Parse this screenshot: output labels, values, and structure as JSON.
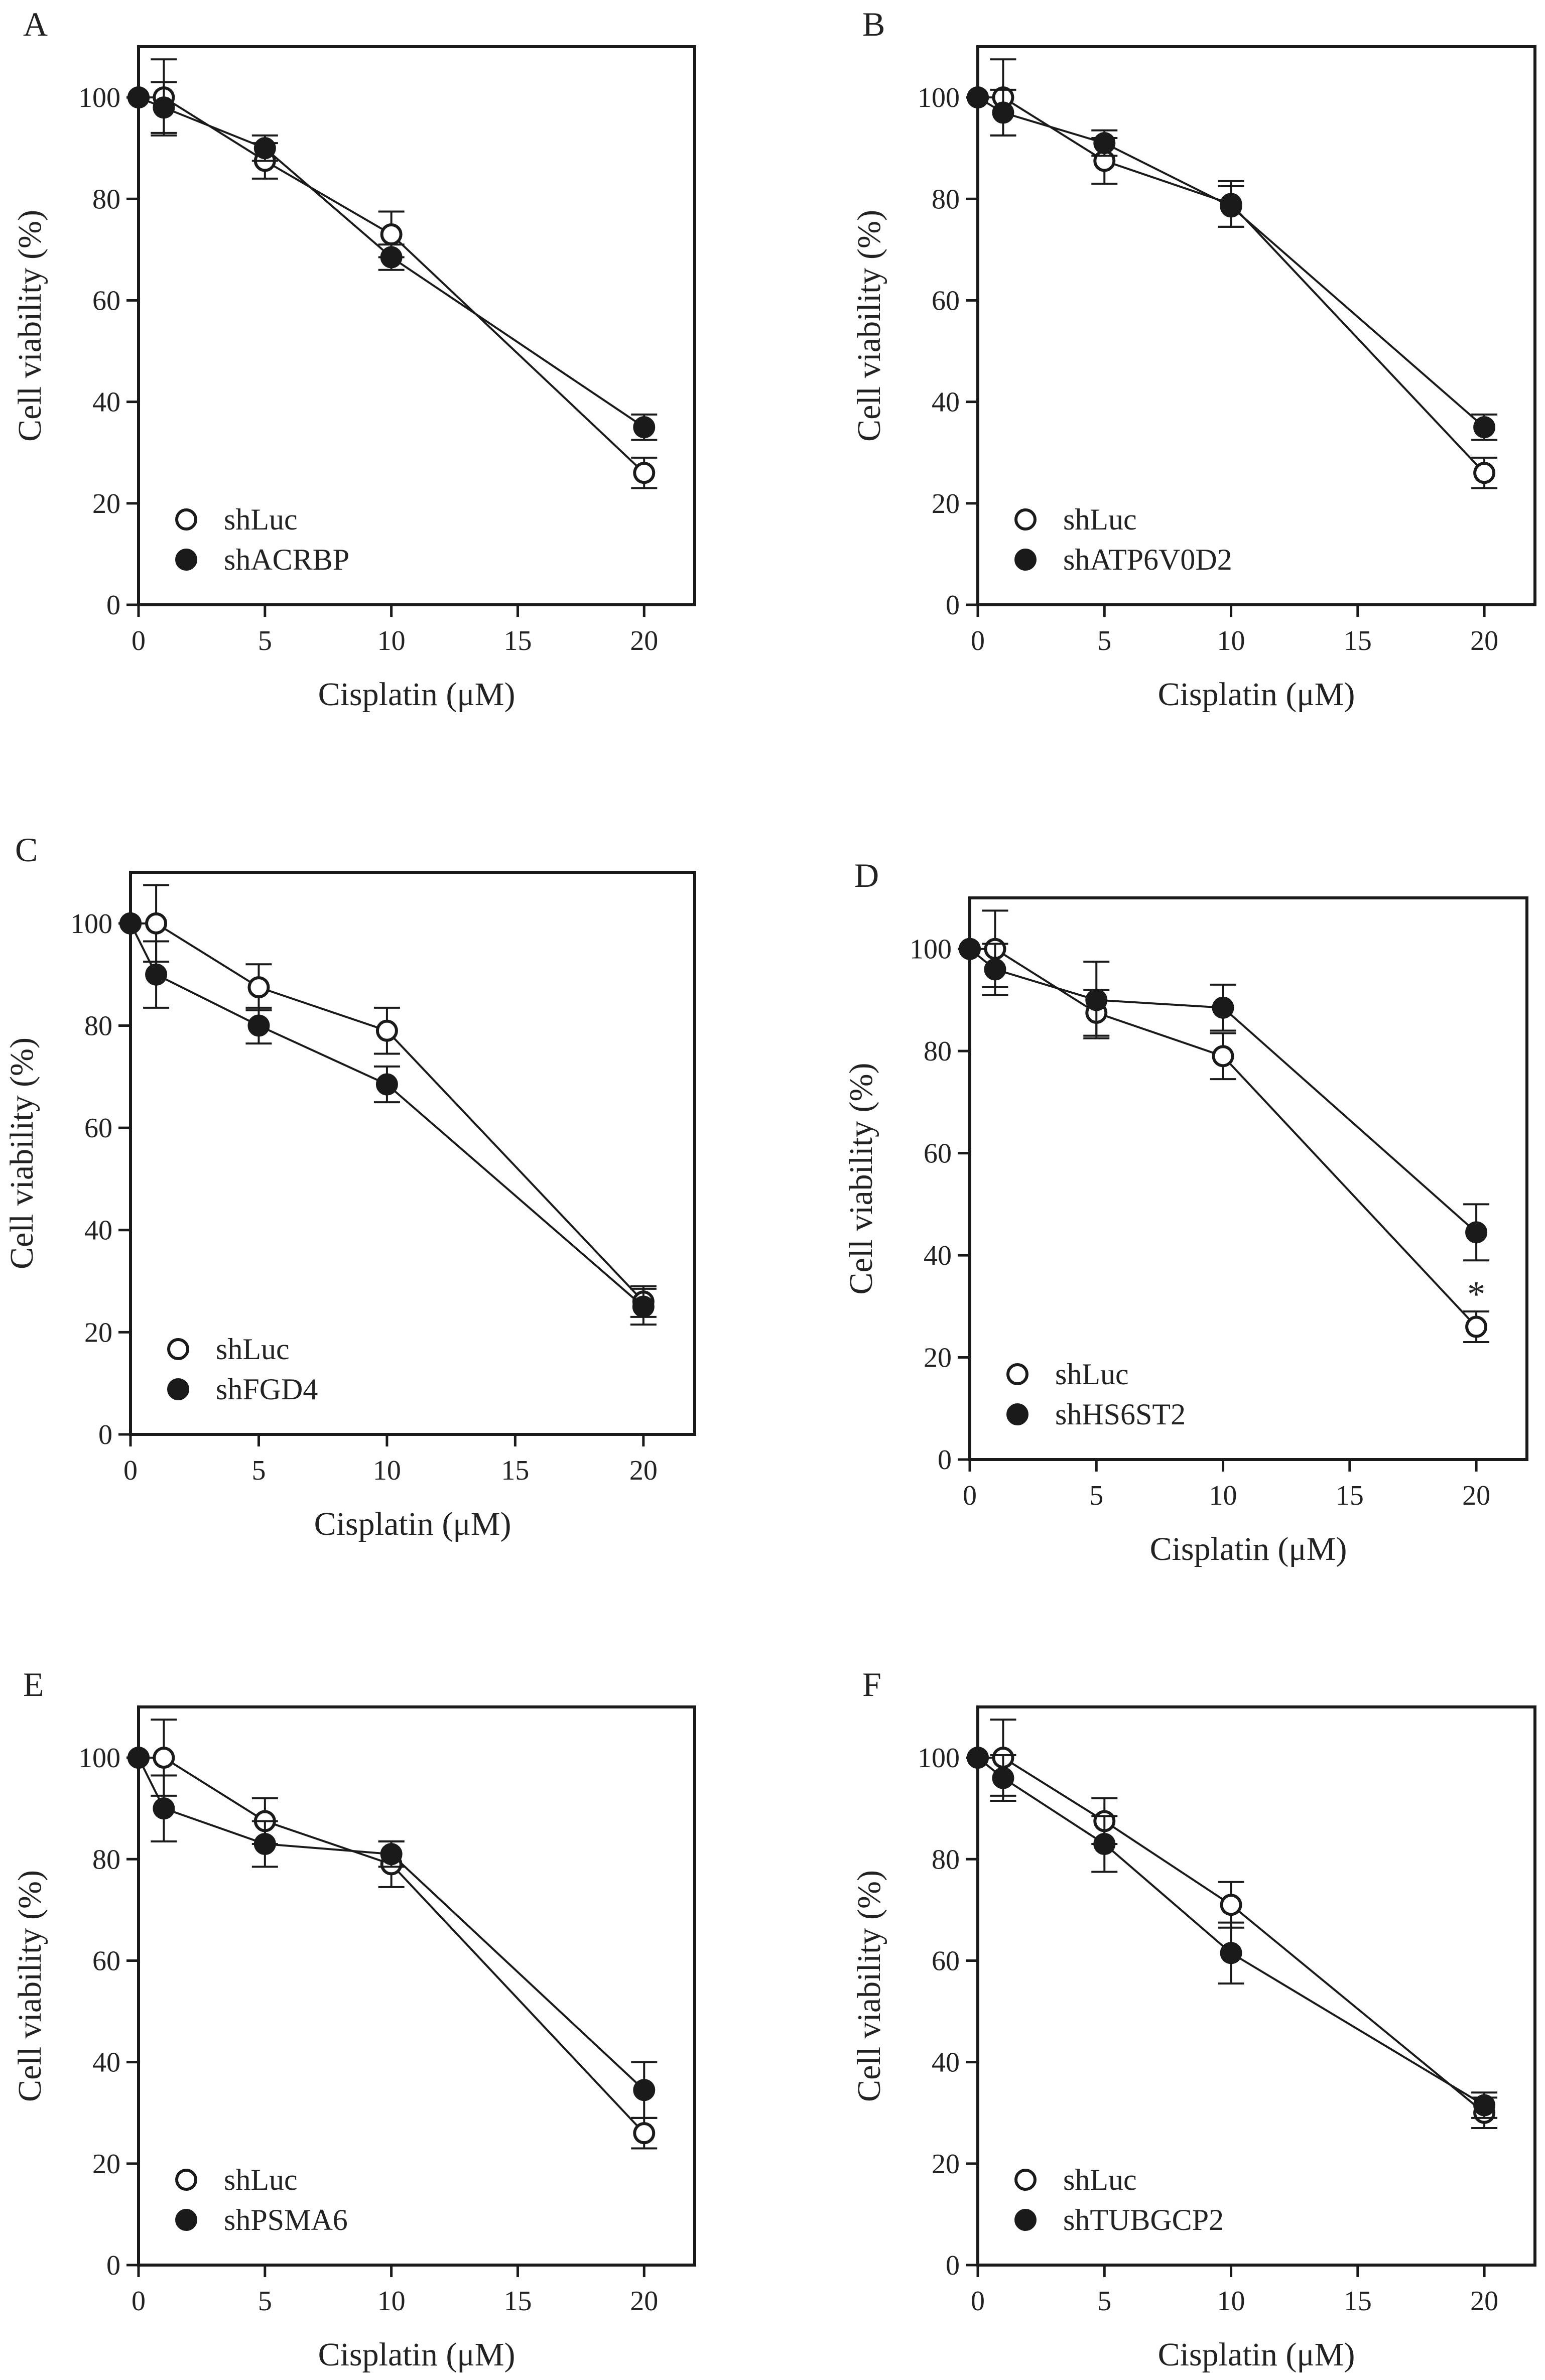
{
  "figure": {
    "background": "#ffffff",
    "ink": "#1a1a1a"
  },
  "chart_data": [
    {
      "panel": "A",
      "type": "line",
      "xlabel": "Cisplatin (μM)",
      "ylabel": "Cell viability (%)",
      "xlim": [
        0,
        22
      ],
      "ylim": [
        0,
        110
      ],
      "xticks": [
        0,
        5,
        10,
        15,
        20
      ],
      "yticks": [
        0,
        20,
        40,
        60,
        80,
        100
      ],
      "grid": false,
      "legend_position": "bottom-left",
      "series": [
        {
          "name": "shLuc",
          "marker": "open-circle",
          "x": [
            0,
            1,
            5,
            10,
            20
          ],
          "y": [
            100,
            100,
            87.5,
            73,
            26
          ],
          "err": [
            0,
            7.5,
            3.5,
            4.5,
            3
          ]
        },
        {
          "name": "shACRBP",
          "marker": "filled-circle",
          "x": [
            0,
            1,
            5,
            10,
            20
          ],
          "y": [
            100,
            98,
            90,
            68.5,
            35
          ],
          "err": [
            0,
            5,
            2.5,
            2.5,
            2.5
          ]
        }
      ]
    },
    {
      "panel": "B",
      "type": "line",
      "xlabel": "Cisplatin (μM)",
      "ylabel": "Cell viability (%)",
      "xlim": [
        0,
        22
      ],
      "ylim": [
        0,
        110
      ],
      "xticks": [
        0,
        5,
        10,
        15,
        20
      ],
      "yticks": [
        0,
        20,
        40,
        60,
        80,
        100
      ],
      "grid": false,
      "legend_position": "bottom-left",
      "series": [
        {
          "name": "shLuc",
          "marker": "open-circle",
          "x": [
            0,
            1,
            5,
            10,
            20
          ],
          "y": [
            100,
            100,
            87.5,
            79,
            26
          ],
          "err": [
            0,
            7.5,
            4.5,
            4.5,
            3
          ]
        },
        {
          "name": "shATP6V0D2",
          "marker": "filled-circle",
          "x": [
            0,
            1,
            5,
            10,
            20
          ],
          "y": [
            100,
            97,
            91,
            78.5,
            35
          ],
          "err": [
            0,
            4.5,
            2.5,
            4,
            2.5
          ]
        }
      ]
    },
    {
      "panel": "C",
      "type": "line",
      "xlabel": "Cisplatin (μM)",
      "ylabel": "Cell viability (%)",
      "xlim": [
        0,
        22
      ],
      "ylim": [
        0,
        110
      ],
      "xticks": [
        0,
        5,
        10,
        15,
        20
      ],
      "yticks": [
        0,
        20,
        40,
        60,
        80,
        100
      ],
      "grid": false,
      "legend_position": "bottom-left",
      "series": [
        {
          "name": "shLuc",
          "marker": "open-circle",
          "x": [
            0,
            1,
            5,
            10,
            20
          ],
          "y": [
            100,
            100,
            87.5,
            79,
            26
          ],
          "err": [
            0,
            7.5,
            4.5,
            4.5,
            3
          ]
        },
        {
          "name": "shFGD4",
          "marker": "filled-circle",
          "x": [
            0,
            1,
            5,
            10,
            20
          ],
          "y": [
            100,
            90,
            80,
            68.5,
            25
          ],
          "err": [
            0,
            6.5,
            3.5,
            3.5,
            3.5
          ]
        }
      ]
    },
    {
      "panel": "D",
      "type": "line",
      "xlabel": "Cisplatin (μM)",
      "ylabel": "Cell viability (%)",
      "xlim": [
        0,
        22
      ],
      "ylim": [
        0,
        110
      ],
      "xticks": [
        0,
        5,
        10,
        15,
        20
      ],
      "yticks": [
        0,
        20,
        40,
        60,
        80,
        100
      ],
      "grid": false,
      "legend_position": "bottom-left",
      "annotations": [
        {
          "text": "*",
          "x": 20,
          "y": 33
        }
      ],
      "series": [
        {
          "name": "shLuc",
          "marker": "open-circle",
          "x": [
            0,
            1,
            5,
            10,
            20
          ],
          "y": [
            100,
            100,
            87.5,
            79,
            26
          ],
          "err": [
            0,
            7.5,
            4.5,
            4.5,
            3
          ]
        },
        {
          "name": "shHS6ST2",
          "marker": "filled-circle",
          "x": [
            0,
            1,
            5,
            10,
            20
          ],
          "y": [
            100,
            96,
            90,
            88.5,
            44.5
          ],
          "err": [
            0,
            5,
            7.5,
            4.5,
            5.5
          ]
        }
      ]
    },
    {
      "panel": "E",
      "type": "line",
      "xlabel": "Cisplatin (μM)",
      "ylabel": "Cell viability (%)",
      "xlim": [
        0,
        22
      ],
      "ylim": [
        0,
        110
      ],
      "xticks": [
        0,
        5,
        10,
        15,
        20
      ],
      "yticks": [
        0,
        20,
        40,
        60,
        80,
        100
      ],
      "grid": false,
      "legend_position": "bottom-left",
      "series": [
        {
          "name": "shLuc",
          "marker": "open-circle",
          "x": [
            0,
            1,
            5,
            10,
            20
          ],
          "y": [
            100,
            100,
            87.5,
            79,
            26
          ],
          "err": [
            0,
            7.5,
            4.5,
            4.5,
            3
          ]
        },
        {
          "name": "shPSMA6",
          "marker": "filled-circle",
          "x": [
            0,
            1,
            5,
            10,
            20
          ],
          "y": [
            100,
            90,
            83,
            81,
            34.5
          ],
          "err": [
            0,
            6.5,
            4.5,
            2.5,
            5.5
          ]
        }
      ]
    },
    {
      "panel": "F",
      "type": "line",
      "xlabel": "Cisplatin (μM)",
      "ylabel": "Cell viability (%)",
      "xlim": [
        0,
        22
      ],
      "ylim": [
        0,
        110
      ],
      "xticks": [
        0,
        5,
        10,
        15,
        20
      ],
      "yticks": [
        0,
        20,
        40,
        60,
        80,
        100
      ],
      "grid": false,
      "legend_position": "bottom-left",
      "series": [
        {
          "name": "shLuc",
          "marker": "open-circle",
          "x": [
            0,
            1,
            5,
            10,
            20
          ],
          "y": [
            100,
            100,
            87.5,
            71,
            30
          ],
          "err": [
            0,
            7.5,
            4.5,
            4.5,
            3
          ]
        },
        {
          "name": "shTUBGCP2",
          "marker": "filled-circle",
          "x": [
            0,
            1,
            5,
            10,
            20
          ],
          "y": [
            100,
            96,
            83,
            61.5,
            31.5
          ],
          "err": [
            0,
            4.5,
            5.5,
            6,
            2.5
          ]
        }
      ]
    }
  ]
}
